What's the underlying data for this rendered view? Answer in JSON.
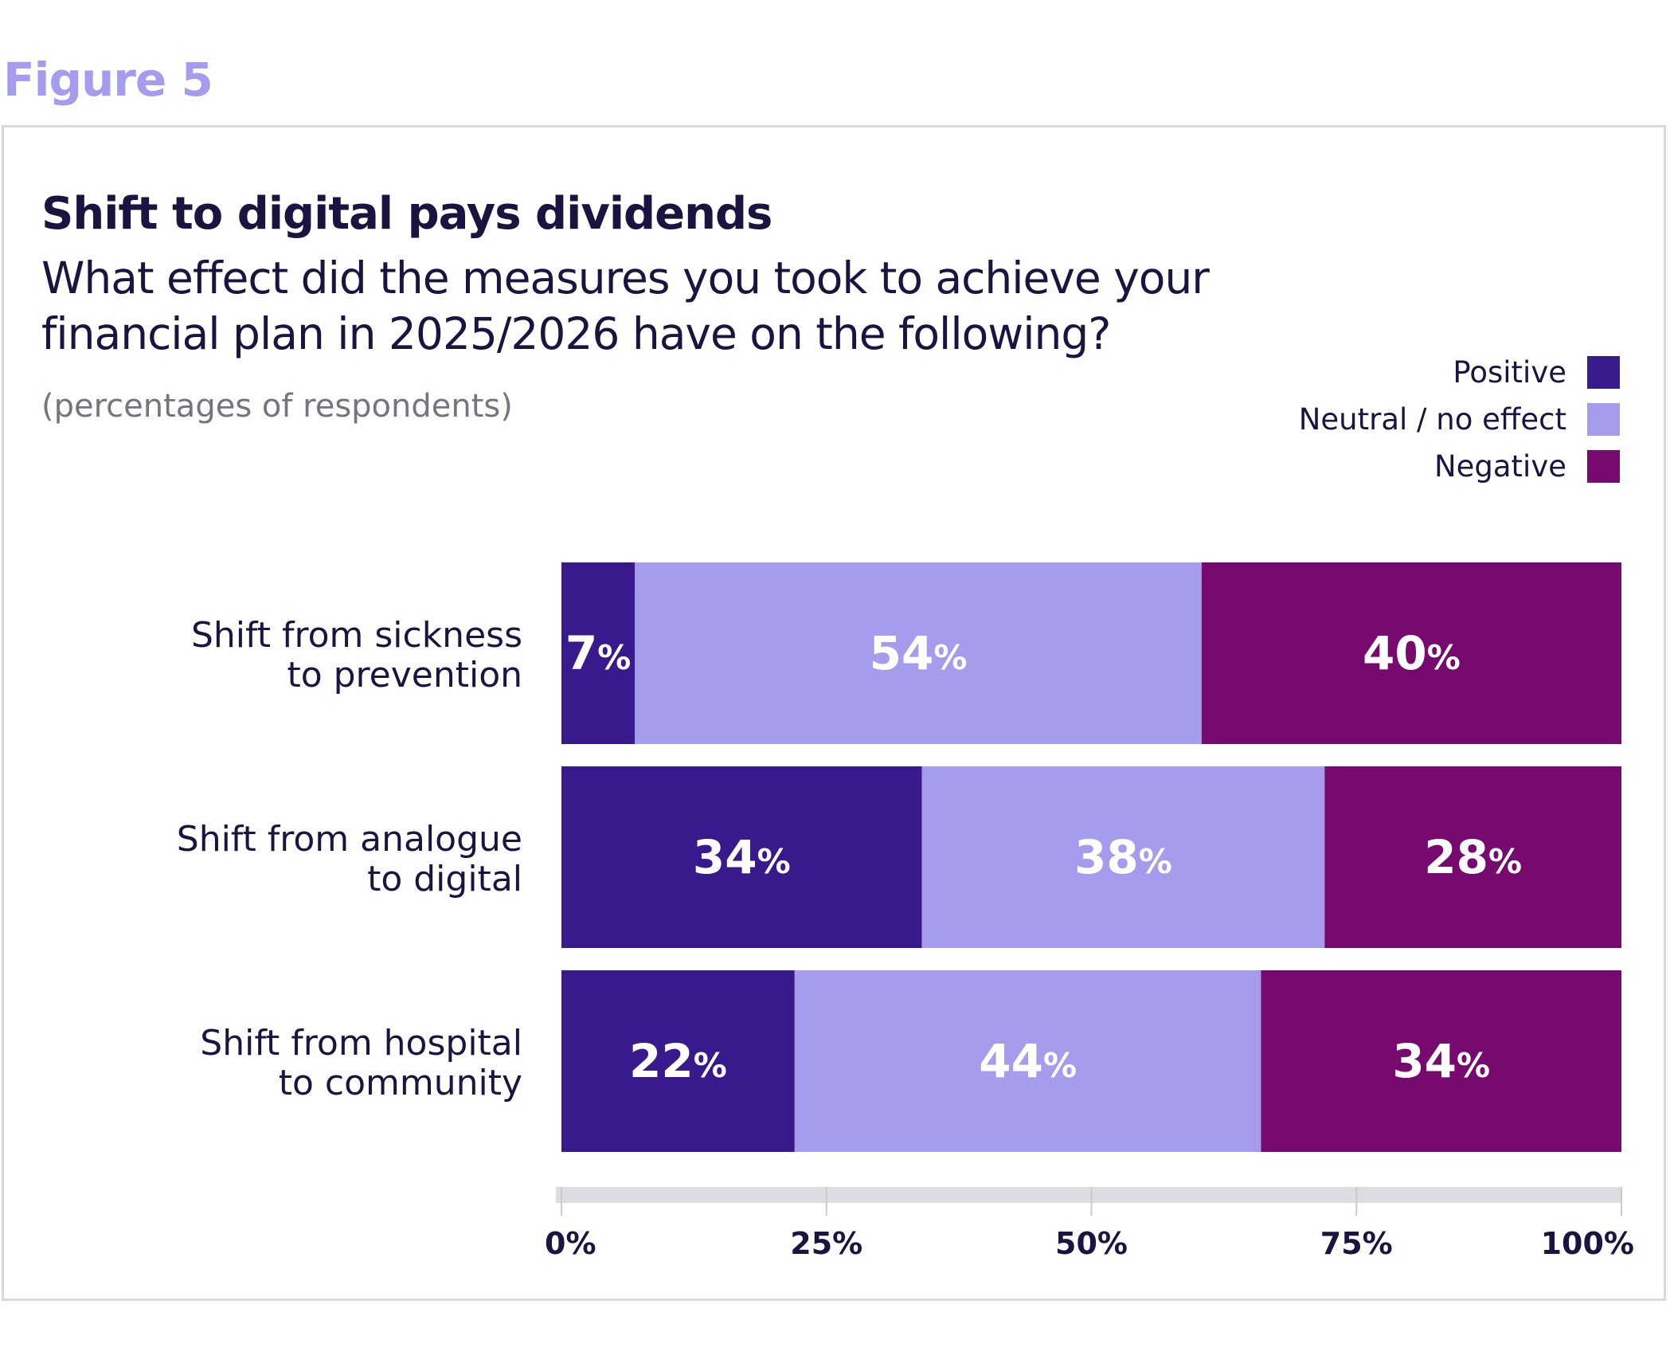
{
  "figure_label": "Figure 5",
  "chart_data": {
    "type": "bar",
    "orientation": "horizontal",
    "stacked": true,
    "title": "Shift to digital pays dividends",
    "subtitle": "What effect did the measures you took to achieve your financial plan in 2025/2026 have on the following?",
    "note": "(percentages of respondents)",
    "categories": [
      [
        "Shift from sickness",
        "to prevention"
      ],
      [
        "Shift from analogue",
        "to digital"
      ],
      [
        "Shift from hospital",
        "to community"
      ]
    ],
    "series": [
      {
        "name": "Positive",
        "color": "#381a8c",
        "values": [
          7,
          34,
          22
        ]
      },
      {
        "name": "Neutral / no effect",
        "color": "#a59ced",
        "values": [
          54,
          38,
          44
        ]
      },
      {
        "name": "Negative",
        "color": "#760a6e",
        "values": [
          40,
          28,
          34
        ]
      }
    ],
    "value_suffix": "%",
    "xlim": [
      0,
      100
    ],
    "xticks": [
      0,
      25,
      50,
      75,
      100
    ],
    "xtick_labels": [
      "0%",
      "25%",
      "50%",
      "75%",
      "100%"
    ],
    "legend_position": "top-right"
  }
}
